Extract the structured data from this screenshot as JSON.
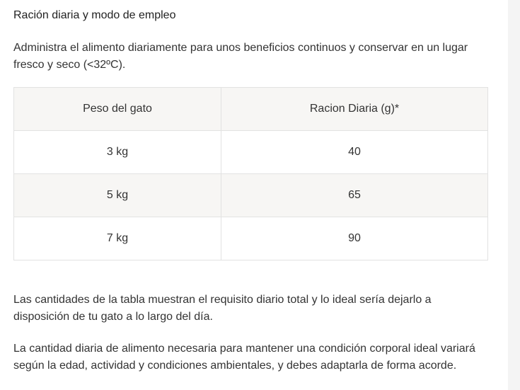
{
  "section": {
    "title": "Ración diaria y modo de empleo",
    "intro": "Administra el alimento diariamente para unos beneficios continuos y conservar en un lugar fresco y seco (<32ºC)."
  },
  "table": {
    "headers": [
      "Peso del gato",
      "Racion Diaria (g)*"
    ],
    "rows": [
      [
        "3 kg",
        "40"
      ],
      [
        "5 kg",
        "65"
      ],
      [
        "7 kg",
        "90"
      ]
    ]
  },
  "notes": [
    "Las cantidades de la tabla muestran el requisito diario total y lo ideal sería dejarlo a disposición de tu gato a lo largo del día.",
    "La cantidad diaria de alimento necesaria para mantener una condición corporal ideal variará según la edad, actividad y condiciones ambientales, y debes adaptarla de forma acorde."
  ]
}
